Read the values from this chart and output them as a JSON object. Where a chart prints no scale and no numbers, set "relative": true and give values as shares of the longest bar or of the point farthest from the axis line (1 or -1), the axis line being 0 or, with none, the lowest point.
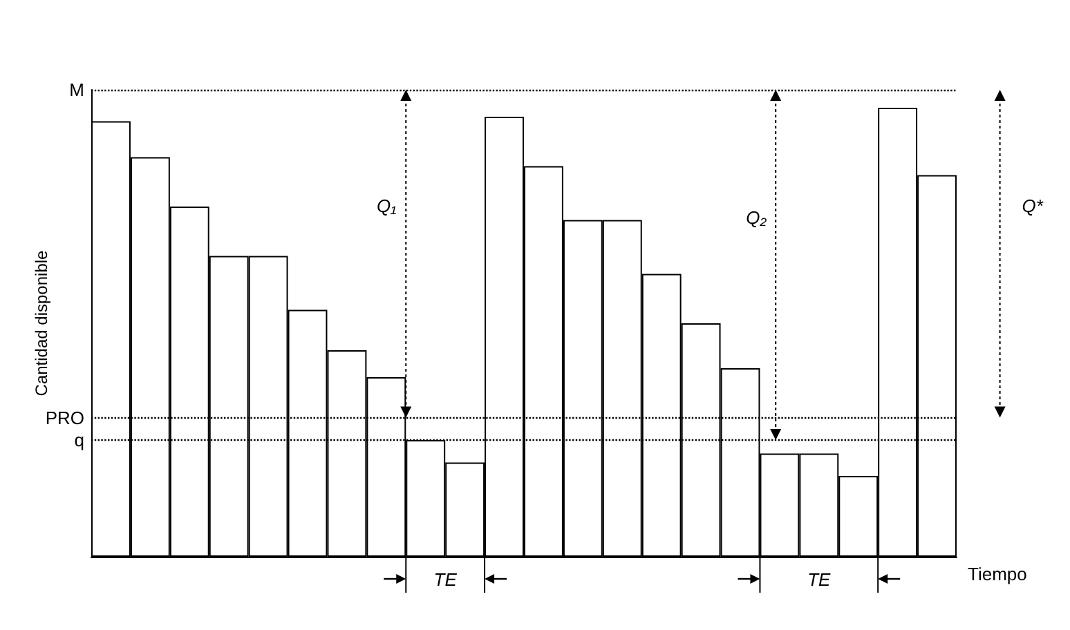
{
  "chart_data": {
    "type": "bar",
    "relative": true,
    "xlabel": "Tiempo",
    "ylabel": "Cantidad disponible",
    "categories": [
      null,
      null,
      null,
      null,
      null,
      null,
      null,
      null,
      null,
      null,
      null,
      null,
      null,
      null,
      null,
      null,
      null,
      null,
      null,
      null,
      null,
      null
    ],
    "values": [
      0.97,
      0.89,
      0.78,
      0.67,
      0.67,
      0.55,
      0.46,
      0.4,
      0.26,
      0.21,
      0.98,
      0.87,
      0.75,
      0.75,
      0.63,
      0.52,
      0.42,
      0.23,
      0.23,
      0.18,
      1,
      0.85
    ],
    "color": "#ffffff",
    "ref_lines": [
      {
        "axis": "y",
        "value": 1.04,
        "label": "M",
        "line_style": "dotted"
      },
      {
        "axis": "y",
        "value": 0.31,
        "label": "PRO",
        "line_style": "dotted"
      },
      {
        "axis": "y",
        "value": 0.26,
        "label": "q",
        "line_style": "dotted"
      }
    ],
    "annotations": [
      "Q₁",
      "Q₂",
      "Q*",
      "TE",
      "TE"
    ],
    "grid": false
  }
}
